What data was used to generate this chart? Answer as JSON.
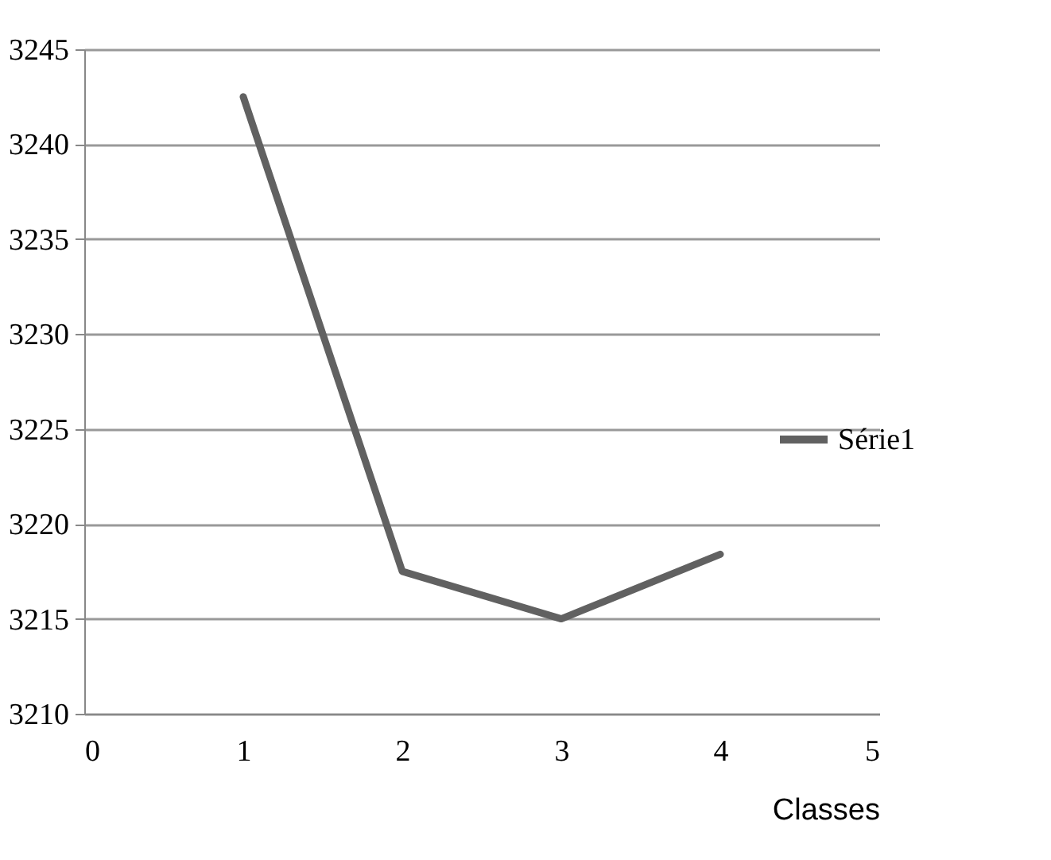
{
  "chart_data": {
    "type": "line",
    "xlabel": "Classes",
    "x": [
      1,
      2,
      3,
      4
    ],
    "series": [
      {
        "name": "Série1",
        "color": "#616161",
        "values": [
          3242.5,
          3217.5,
          3215.0,
          3218.4
        ]
      }
    ],
    "xlim": [
      0,
      5
    ],
    "xticks": [
      0,
      1,
      2,
      3,
      4,
      5
    ],
    "ylim": [
      3210,
      3245
    ],
    "yticks": [
      3210,
      3215,
      3220,
      3225,
      3230,
      3235,
      3240,
      3245
    ],
    "grid": "y",
    "legend": "right",
    "marker": "none",
    "line_style": "solid"
  }
}
